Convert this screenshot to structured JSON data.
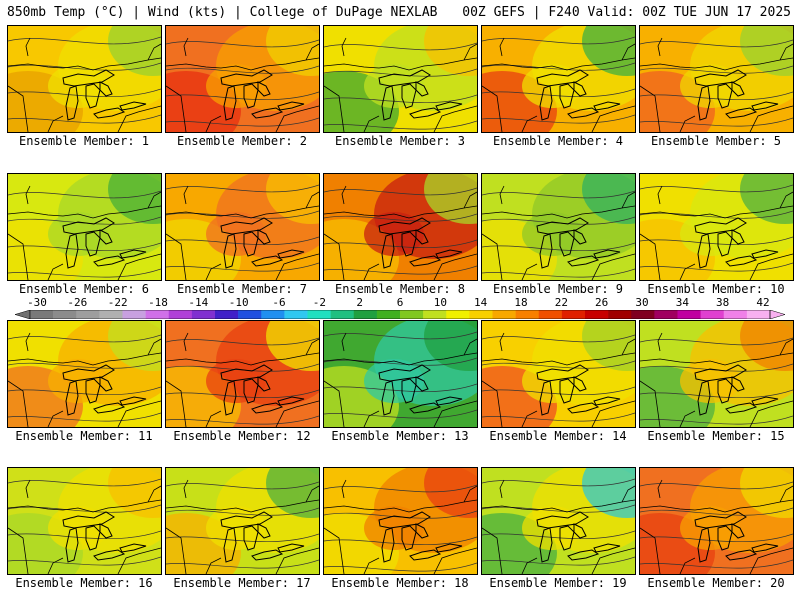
{
  "header": {
    "title_left": "850mb Temp (°C) | Wind (kts) | College of DuPage NEXLAB",
    "title_right": "00Z GEFS | F240 Valid: 00Z TUE JUN 17 2025"
  },
  "colorbar": {
    "ticks": [
      "-30",
      "-26",
      "-22",
      "-18",
      "-14",
      "-10",
      "-6",
      "-2",
      "2",
      "6",
      "10",
      "14",
      "18",
      "22",
      "26",
      "30",
      "34",
      "38",
      "42"
    ],
    "colors": [
      "#7a7a7a",
      "#8c8c8c",
      "#9e9e9e",
      "#b0b0b0",
      "#c8a0e0",
      "#d070e8",
      "#b040d8",
      "#8030d0",
      "#4020c8",
      "#2050e0",
      "#2090f0",
      "#30c8f0",
      "#20e0c0",
      "#20c080",
      "#20a040",
      "#40b020",
      "#80c820",
      "#c0e020",
      "#f0f000",
      "#f8d000",
      "#f8a800",
      "#f88000",
      "#f05000",
      "#e02000",
      "#c80000",
      "#a00000",
      "#800020",
      "#a00060",
      "#c000a0",
      "#e040d0",
      "#f080e8",
      "#f8b0f0"
    ]
  },
  "panels": [
    {
      "caption": "Ensemble Member: 1",
      "colors": [
        "#f8c800",
        "#f0e000",
        "#e8a000",
        "#98d030"
      ]
    },
    {
      "caption": "Ensemble Member: 2",
      "colors": [
        "#f07020",
        "#f8a000",
        "#e83010",
        "#f0d000"
      ]
    },
    {
      "caption": "Ensemble Member: 3",
      "colors": [
        "#f0e000",
        "#c0e020",
        "#40a830",
        "#f8c000"
      ]
    },
    {
      "caption": "Ensemble Member: 4",
      "colors": [
        "#f8b000",
        "#f0e000",
        "#e84010",
        "#40b040"
      ]
    },
    {
      "caption": "Ensemble Member: 5",
      "colors": [
        "#f8b000",
        "#f0d800",
        "#f06020",
        "#98d030"
      ]
    },
    {
      "caption": "Ensemble Member: 6",
      "colors": [
        "#d8e810",
        "#a8d828",
        "#f0e000",
        "#48b038"
      ]
    },
    {
      "caption": "Ensemble Member: 7",
      "colors": [
        "#f8a800",
        "#f07020",
        "#f0d800",
        "#f8c000"
      ]
    },
    {
      "caption": "Ensemble Member: 8",
      "colors": [
        "#f08000",
        "#c82010",
        "#f8c000",
        "#a8d828"
      ]
    },
    {
      "caption": "Ensemble Member: 9",
      "colors": [
        "#c0e020",
        "#90c828",
        "#f0e000",
        "#30b060"
      ]
    },
    {
      "caption": "Ensemble Member: 10",
      "colors": [
        "#f0e000",
        "#d8e810",
        "#f8c000",
        "#50b040"
      ]
    },
    {
      "caption": "Ensemble Member: 11",
      "colors": [
        "#f0e000",
        "#f8b000",
        "#f07020",
        "#c0e020"
      ]
    },
    {
      "caption": "Ensemble Member: 12",
      "colors": [
        "#f07020",
        "#e84010",
        "#f8c000",
        "#f0e000"
      ]
    },
    {
      "caption": "Ensemble Member: 13",
      "colors": [
        "#40a830",
        "#30c8a0",
        "#c0e020",
        "#20a040"
      ]
    },
    {
      "caption": "Ensemble Member: 14",
      "colors": [
        "#f8d000",
        "#f0e000",
        "#f05020",
        "#a0d028"
      ]
    },
    {
      "caption": "Ensemble Member: 15",
      "colors": [
        "#c0e020",
        "#f8c000",
        "#50b040",
        "#f08000"
      ]
    },
    {
      "caption": "Ensemble Member: 16",
      "colors": [
        "#d0e018",
        "#f0e000",
        "#a8d828",
        "#f8c000"
      ]
    },
    {
      "caption": "Ensemble Member: 17",
      "colors": [
        "#c8e018",
        "#f0e000",
        "#f8b000",
        "#50b040"
      ]
    },
    {
      "caption": "Ensemble Member: 18",
      "colors": [
        "#f8c000",
        "#f08000",
        "#f0e000",
        "#e84010"
      ]
    },
    {
      "caption": "Ensemble Member: 19",
      "colors": [
        "#c0e020",
        "#f0e000",
        "#48b040",
        "#30c8d0"
      ]
    },
    {
      "caption": "Ensemble Member: 20",
      "colors": [
        "#f07020",
        "#f8a000",
        "#e84010",
        "#f0d800"
      ]
    }
  ]
}
